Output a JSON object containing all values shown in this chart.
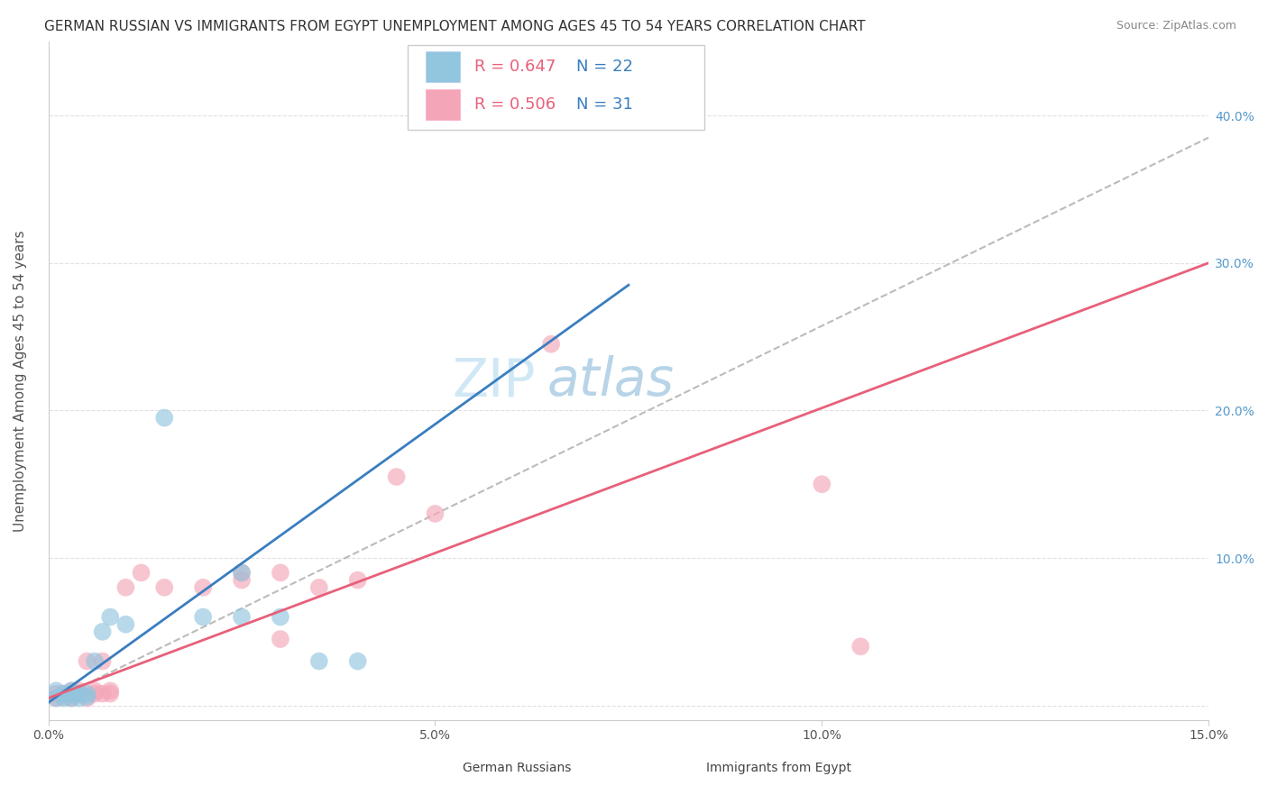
{
  "title": "GERMAN RUSSIAN VS IMMIGRANTS FROM EGYPT UNEMPLOYMENT AMONG AGES 45 TO 54 YEARS CORRELATION CHART",
  "source": "Source: ZipAtlas.com",
  "ylabel": "Unemployment Among Ages 45 to 54 years",
  "xlim": [
    0.0,
    0.15
  ],
  "ylim": [
    -0.01,
    0.45
  ],
  "xticks": [
    0.0,
    0.05,
    0.1,
    0.15
  ],
  "xticklabels": [
    "0.0%",
    "5.0%",
    "10.0%",
    "15.0%"
  ],
  "yticks": [
    0.0,
    0.1,
    0.2,
    0.3,
    0.4
  ],
  "yticklabels": [
    "",
    "10.0%",
    "20.0%",
    "30.0%",
    "40.0%"
  ],
  "legend_labels": [
    "German Russians",
    "Immigrants from Egypt"
  ],
  "legend_r_blue": "R = 0.647",
  "legend_n_blue": "N = 22",
  "legend_r_pink": "R = 0.506",
  "legend_n_pink": "N = 31",
  "blue_color": "#92c5de",
  "pink_color": "#f4a6b8",
  "blue_line_color": "#3a7ebf",
  "pink_line_color": "#e8607a",
  "dashed_line_color": "#bbbbbb",
  "watermark_zip": "ZIP",
  "watermark_atlas": "atlas",
  "blue_scatter_x": [
    0.001,
    0.001,
    0.002,
    0.002,
    0.003,
    0.003,
    0.003,
    0.004,
    0.004,
    0.005,
    0.005,
    0.006,
    0.007,
    0.008,
    0.01,
    0.015,
    0.02,
    0.025,
    0.025,
    0.03,
    0.035,
    0.04
  ],
  "blue_scatter_y": [
    0.005,
    0.01,
    0.005,
    0.008,
    0.005,
    0.008,
    0.01,
    0.005,
    0.008,
    0.006,
    0.008,
    0.03,
    0.05,
    0.06,
    0.055,
    0.195,
    0.06,
    0.06,
    0.09,
    0.06,
    0.03,
    0.03
  ],
  "pink_scatter_x": [
    0.001,
    0.001,
    0.002,
    0.002,
    0.003,
    0.003,
    0.004,
    0.004,
    0.005,
    0.005,
    0.006,
    0.006,
    0.007,
    0.007,
    0.008,
    0.008,
    0.01,
    0.012,
    0.015,
    0.02,
    0.025,
    0.025,
    0.03,
    0.03,
    0.035,
    0.04,
    0.045,
    0.05,
    0.065,
    0.1,
    0.105
  ],
  "pink_scatter_y": [
    0.005,
    0.008,
    0.006,
    0.008,
    0.005,
    0.01,
    0.008,
    0.01,
    0.005,
    0.03,
    0.008,
    0.01,
    0.008,
    0.03,
    0.008,
    0.01,
    0.08,
    0.09,
    0.08,
    0.08,
    0.09,
    0.085,
    0.045,
    0.09,
    0.08,
    0.085,
    0.155,
    0.13,
    0.245,
    0.15,
    0.04
  ],
  "blue_line_x0": 0.0,
  "blue_line_x1": 0.075,
  "blue_line_y0": 0.002,
  "blue_line_y1": 0.285,
  "dashed_line_x0": 0.0,
  "dashed_line_x1": 0.15,
  "dashed_line_y0": 0.002,
  "dashed_line_y1": 0.385,
  "pink_line_x0": 0.0,
  "pink_line_x1": 0.15,
  "pink_line_y0": 0.005,
  "pink_line_y1": 0.3,
  "grid_color": "#e0e0e0",
  "background_color": "#ffffff",
  "title_fontsize": 11,
  "axis_label_fontsize": 11,
  "tick_fontsize": 10,
  "legend_fontsize": 13,
  "watermark_fontsize_zip": 42,
  "watermark_fontsize_atlas": 42,
  "watermark_color_zip": "#d0e8f5",
  "watermark_color_atlas": "#b8d4e8",
  "right_ytick_color": "#5599cc"
}
